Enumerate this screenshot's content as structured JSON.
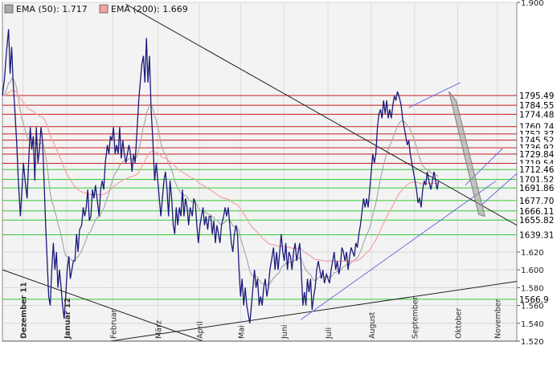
{
  "chart_data": {
    "type": "line",
    "legend": [
      {
        "label": "EMA (50): 1.717",
        "color": "#a9a9a9"
      },
      {
        "label": "EMA (200): 1.669",
        "color": "#f4a1a1"
      }
    ],
    "ylim": [
      1.52,
      1.9
    ],
    "y_ticks": [
      {
        "label": "1.900",
        "value": 1.9
      },
      {
        "label": "1.620",
        "value": 1.62
      },
      {
        "label": "1.600",
        "value": 1.6
      },
      {
        "label": "1.580",
        "value": 1.58
      },
      {
        "label": "1.560",
        "value": 1.56
      },
      {
        "label": "1.540",
        "value": 1.54
      },
      {
        "label": "1.520",
        "value": 1.52
      }
    ],
    "resistance_levels": [
      {
        "label": "1795.49",
        "value": 1.7955
      },
      {
        "label": "1784.55",
        "value": 1.7846
      },
      {
        "label": "1774.48",
        "value": 1.7745
      },
      {
        "label": "1760.74",
        "value": 1.7607
      },
      {
        "label": "1752.37",
        "value": 1.7524
      },
      {
        "label": "1745.52",
        "value": 1.7455
      },
      {
        "label": "1736.92",
        "value": 1.7369
      },
      {
        "label": "1729.84",
        "value": 1.7298
      },
      {
        "label": "1719.54",
        "value": 1.7195
      }
    ],
    "support_levels": [
      {
        "label": "1712.46",
        "value": 1.7125
      },
      {
        "label": "1701.52",
        "value": 1.7015
      },
      {
        "label": "1691.86",
        "value": 1.6919
      },
      {
        "label": "1677.70",
        "value": 1.6777
      },
      {
        "label": "1666.11",
        "value": 1.6661
      },
      {
        "label": "1655.82",
        "value": 1.6558
      },
      {
        "label": "1639.31",
        "value": 1.6393
      },
      {
        "label": "1566.9",
        "value": 1.5669
      }
    ],
    "months": [
      {
        "label": "Dezember 11",
        "t": 0.04,
        "bold": true
      },
      {
        "label": "Januar 12",
        "t": 0.125,
        "bold": true
      },
      {
        "label": "Februar",
        "t": 0.215,
        "bold": false
      },
      {
        "label": "März",
        "t": 0.302,
        "bold": false
      },
      {
        "label": "April",
        "t": 0.383,
        "bold": false
      },
      {
        "label": "Mai",
        "t": 0.463,
        "bold": false
      },
      {
        "label": "Juni",
        "t": 0.547,
        "bold": false
      },
      {
        "label": "Juli",
        "t": 0.633,
        "bold": false
      },
      {
        "label": "August",
        "t": 0.717,
        "bold": false
      },
      {
        "label": "September",
        "t": 0.801,
        "bold": false
      },
      {
        "label": "Oktober",
        "t": 0.885,
        "bold": false
      },
      {
        "label": "November",
        "t": 0.962,
        "bold": false
      }
    ],
    "price": [
      [
        0.0,
        1.795
      ],
      [
        0.004,
        1.815
      ],
      [
        0.008,
        1.845
      ],
      [
        0.012,
        1.87
      ],
      [
        0.015,
        1.82
      ],
      [
        0.018,
        1.85
      ],
      [
        0.021,
        1.81
      ],
      [
        0.024,
        1.78
      ],
      [
        0.028,
        1.74
      ],
      [
        0.031,
        1.7
      ],
      [
        0.035,
        1.66
      ],
      [
        0.038,
        1.69
      ],
      [
        0.041,
        1.72
      ],
      [
        0.044,
        1.7
      ],
      [
        0.048,
        1.68
      ],
      [
        0.051,
        1.72
      ],
      [
        0.054,
        1.76
      ],
      [
        0.057,
        1.735
      ],
      [
        0.06,
        1.75
      ],
      [
        0.063,
        1.7
      ],
      [
        0.066,
        1.76
      ],
      [
        0.069,
        1.72
      ],
      [
        0.072,
        1.735
      ],
      [
        0.075,
        1.76
      ],
      [
        0.078,
        1.745
      ],
      [
        0.081,
        1.7
      ],
      [
        0.084,
        1.65
      ],
      [
        0.087,
        1.61
      ],
      [
        0.09,
        1.57
      ],
      [
        0.093,
        1.56
      ],
      [
        0.096,
        1.6
      ],
      [
        0.099,
        1.63
      ],
      [
        0.102,
        1.6
      ],
      [
        0.105,
        1.62
      ],
      [
        0.108,
        1.58
      ],
      [
        0.111,
        1.6
      ],
      [
        0.114,
        1.58
      ],
      [
        0.117,
        1.56
      ],
      [
        0.12,
        1.545
      ],
      [
        0.123,
        1.57
      ],
      [
        0.126,
        1.6
      ],
      [
        0.129,
        1.615
      ],
      [
        0.132,
        1.59
      ],
      [
        0.135,
        1.6
      ],
      [
        0.138,
        1.61
      ],
      [
        0.141,
        1.61
      ],
      [
        0.144,
        1.64
      ],
      [
        0.147,
        1.62
      ],
      [
        0.15,
        1.645
      ],
      [
        0.154,
        1.65
      ],
      [
        0.157,
        1.67
      ],
      [
        0.16,
        1.66
      ],
      [
        0.163,
        1.67
      ],
      [
        0.166,
        1.69
      ],
      [
        0.169,
        1.655
      ],
      [
        0.172,
        1.66
      ],
      [
        0.175,
        1.69
      ],
      [
        0.178,
        1.68
      ],
      [
        0.181,
        1.695
      ],
      [
        0.184,
        1.68
      ],
      [
        0.188,
        1.66
      ],
      [
        0.191,
        1.69
      ],
      [
        0.194,
        1.7
      ],
      [
        0.197,
        1.69
      ],
      [
        0.2,
        1.72
      ],
      [
        0.204,
        1.74
      ],
      [
        0.207,
        1.73
      ],
      [
        0.21,
        1.75
      ],
      [
        0.213,
        1.745
      ],
      [
        0.216,
        1.76
      ],
      [
        0.219,
        1.73
      ],
      [
        0.222,
        1.74
      ],
      [
        0.225,
        1.73
      ],
      [
        0.228,
        1.76
      ],
      [
        0.231,
        1.725
      ],
      [
        0.234,
        1.745
      ],
      [
        0.237,
        1.73
      ],
      [
        0.24,
        1.72
      ],
      [
        0.243,
        1.73
      ],
      [
        0.246,
        1.74
      ],
      [
        0.249,
        1.73
      ],
      [
        0.252,
        1.71
      ],
      [
        0.255,
        1.73
      ],
      [
        0.258,
        1.72
      ],
      [
        0.262,
        1.76
      ],
      [
        0.265,
        1.79
      ],
      [
        0.268,
        1.81
      ],
      [
        0.271,
        1.83
      ],
      [
        0.274,
        1.84
      ],
      [
        0.277,
        1.81
      ],
      [
        0.28,
        1.86
      ],
      [
        0.283,
        1.81
      ],
      [
        0.286,
        1.84
      ],
      [
        0.289,
        1.78
      ],
      [
        0.292,
        1.75
      ],
      [
        0.296,
        1.7
      ],
      [
        0.299,
        1.72
      ],
      [
        0.302,
        1.7
      ],
      [
        0.305,
        1.68
      ],
      [
        0.308,
        1.66
      ],
      [
        0.311,
        1.68
      ],
      [
        0.314,
        1.7
      ],
      [
        0.317,
        1.71
      ],
      [
        0.32,
        1.69
      ],
      [
        0.323,
        1.66
      ],
      [
        0.326,
        1.7
      ],
      [
        0.329,
        1.68
      ],
      [
        0.332,
        1.65
      ],
      [
        0.335,
        1.64
      ],
      [
        0.338,
        1.67
      ],
      [
        0.341,
        1.65
      ],
      [
        0.344,
        1.67
      ],
      [
        0.347,
        1.66
      ],
      [
        0.35,
        1.69
      ],
      [
        0.353,
        1.66
      ],
      [
        0.356,
        1.68
      ],
      [
        0.359,
        1.67
      ],
      [
        0.362,
        1.65
      ],
      [
        0.365,
        1.67
      ],
      [
        0.369,
        1.66
      ],
      [
        0.372,
        1.68
      ],
      [
        0.375,
        1.675
      ],
      [
        0.378,
        1.65
      ],
      [
        0.381,
        1.63
      ],
      [
        0.384,
        1.65
      ],
      [
        0.387,
        1.66
      ],
      [
        0.39,
        1.67
      ],
      [
        0.393,
        1.65
      ],
      [
        0.396,
        1.66
      ],
      [
        0.399,
        1.645
      ],
      [
        0.402,
        1.66
      ],
      [
        0.405,
        1.66
      ],
      [
        0.408,
        1.64
      ],
      [
        0.411,
        1.655
      ],
      [
        0.414,
        1.63
      ],
      [
        0.417,
        1.65
      ],
      [
        0.42,
        1.64
      ],
      [
        0.423,
        1.63
      ],
      [
        0.426,
        1.65
      ],
      [
        0.43,
        1.66
      ],
      [
        0.433,
        1.67
      ],
      [
        0.436,
        1.66
      ],
      [
        0.439,
        1.67
      ],
      [
        0.442,
        1.65
      ],
      [
        0.445,
        1.63
      ],
      [
        0.448,
        1.62
      ],
      [
        0.451,
        1.64
      ],
      [
        0.454,
        1.65
      ],
      [
        0.457,
        1.64
      ],
      [
        0.46,
        1.6
      ],
      [
        0.463,
        1.57
      ],
      [
        0.466,
        1.59
      ],
      [
        0.469,
        1.56
      ],
      [
        0.472,
        1.58
      ],
      [
        0.475,
        1.56
      ],
      [
        0.478,
        1.55
      ],
      [
        0.481,
        1.54
      ],
      [
        0.484,
        1.56
      ],
      [
        0.487,
        1.58
      ],
      [
        0.49,
        1.6
      ],
      [
        0.493,
        1.58
      ],
      [
        0.496,
        1.59
      ],
      [
        0.499,
        1.56
      ],
      [
        0.502,
        1.57
      ],
      [
        0.505,
        1.56
      ],
      [
        0.508,
        1.58
      ],
      [
        0.511,
        1.59
      ],
      [
        0.514,
        1.57
      ],
      [
        0.517,
        1.58
      ],
      [
        0.52,
        1.6
      ],
      [
        0.523,
        1.61
      ],
      [
        0.527,
        1.625
      ],
      [
        0.53,
        1.6
      ],
      [
        0.533,
        1.62
      ],
      [
        0.536,
        1.6
      ],
      [
        0.539,
        1.62
      ],
      [
        0.542,
        1.64
      ],
      [
        0.545,
        1.62
      ],
      [
        0.548,
        1.61
      ],
      [
        0.551,
        1.63
      ],
      [
        0.554,
        1.6
      ],
      [
        0.557,
        1.62
      ],
      [
        0.56,
        1.615
      ],
      [
        0.563,
        1.6
      ],
      [
        0.566,
        1.62
      ],
      [
        0.569,
        1.63
      ],
      [
        0.572,
        1.61
      ],
      [
        0.575,
        1.62
      ],
      [
        0.578,
        1.63
      ],
      [
        0.581,
        1.6
      ],
      [
        0.584,
        1.56
      ],
      [
        0.587,
        1.575
      ],
      [
        0.59,
        1.56
      ],
      [
        0.593,
        1.59
      ],
      [
        0.596,
        1.575
      ],
      [
        0.599,
        1.59
      ],
      [
        0.602,
        1.555
      ],
      [
        0.605,
        1.57
      ],
      [
        0.608,
        1.58
      ],
      [
        0.611,
        1.6
      ],
      [
        0.614,
        1.61
      ],
      [
        0.617,
        1.6
      ],
      [
        0.62,
        1.59
      ],
      [
        0.623,
        1.6
      ],
      [
        0.626,
        1.585
      ],
      [
        0.63,
        1.595
      ],
      [
        0.633,
        1.59
      ],
      [
        0.636,
        1.585
      ],
      [
        0.639,
        1.6
      ],
      [
        0.642,
        1.61
      ],
      [
        0.645,
        1.62
      ],
      [
        0.648,
        1.6
      ],
      [
        0.651,
        1.61
      ],
      [
        0.654,
        1.595
      ],
      [
        0.657,
        1.605
      ],
      [
        0.66,
        1.625
      ],
      [
        0.663,
        1.62
      ],
      [
        0.666,
        1.61
      ],
      [
        0.669,
        1.62
      ],
      [
        0.672,
        1.6
      ],
      [
        0.675,
        1.615
      ],
      [
        0.678,
        1.625
      ],
      [
        0.681,
        1.62
      ],
      [
        0.684,
        1.615
      ],
      [
        0.687,
        1.63
      ],
      [
        0.69,
        1.625
      ],
      [
        0.693,
        1.64
      ],
      [
        0.696,
        1.65
      ],
      [
        0.699,
        1.665
      ],
      [
        0.702,
        1.68
      ],
      [
        0.705,
        1.67
      ],
      [
        0.708,
        1.68
      ],
      [
        0.711,
        1.67
      ],
      [
        0.714,
        1.69
      ],
      [
        0.717,
        1.71
      ],
      [
        0.72,
        1.73
      ],
      [
        0.723,
        1.72
      ],
      [
        0.726,
        1.73
      ],
      [
        0.729,
        1.76
      ],
      [
        0.732,
        1.775
      ],
      [
        0.735,
        1.78
      ],
      [
        0.738,
        1.77
      ],
      [
        0.741,
        1.79
      ],
      [
        0.744,
        1.775
      ],
      [
        0.747,
        1.79
      ],
      [
        0.75,
        1.77
      ],
      [
        0.753,
        1.78
      ],
      [
        0.756,
        1.77
      ],
      [
        0.759,
        1.785
      ],
      [
        0.762,
        1.795
      ],
      [
        0.765,
        1.79
      ],
      [
        0.768,
        1.8
      ],
      [
        0.771,
        1.795
      ],
      [
        0.775,
        1.785
      ],
      [
        0.778,
        1.77
      ],
      [
        0.781,
        1.76
      ],
      [
        0.784,
        1.75
      ],
      [
        0.787,
        1.74
      ],
      [
        0.79,
        1.745
      ],
      [
        0.793,
        1.73
      ],
      [
        0.796,
        1.72
      ],
      [
        0.799,
        1.71
      ],
      [
        0.802,
        1.7
      ],
      [
        0.805,
        1.69
      ],
      [
        0.808,
        1.675
      ],
      [
        0.811,
        1.68
      ],
      [
        0.814,
        1.67
      ],
      [
        0.817,
        1.69
      ],
      [
        0.82,
        1.7
      ],
      [
        0.823,
        1.695
      ],
      [
        0.826,
        1.71
      ],
      [
        0.829,
        1.7
      ],
      [
        0.833,
        1.69
      ],
      [
        0.836,
        1.7
      ],
      [
        0.839,
        1.71
      ],
      [
        0.842,
        1.7
      ],
      [
        0.845,
        1.69
      ],
      [
        0.848,
        1.7
      ]
    ]
  }
}
